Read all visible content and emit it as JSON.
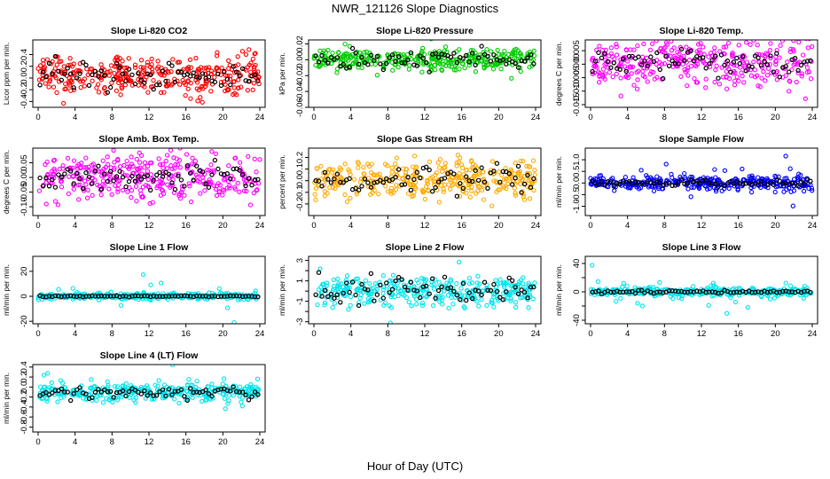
{
  "title": "NWR_121126  Slope Diagnostics",
  "xlabel": "Hour of Day (UTC)",
  "chart_data": [
    {
      "type": "scatter",
      "title": "Slope Li-820 CO2",
      "ylabel": "Licor ppm per min.",
      "color": "#ff0000",
      "xlim": [
        0,
        24
      ],
      "xticks": [
        0,
        4,
        8,
        12,
        16,
        20,
        24
      ],
      "ylim": [
        -0.5,
        0.65
      ],
      "yticks": [
        -0.4,
        -0.2,
        0.0,
        0.2,
        0.4
      ],
      "ytick_labels": [
        "-0.4",
        "-0.2",
        "0.0",
        "0.2",
        "0.4"
      ],
      "spread": 0.17,
      "outlier_spread": 0.3,
      "black_spread": 0.1,
      "black_center": 0.05
    },
    {
      "type": "scatter",
      "title": "Slope Li-820 Pressure",
      "ylabel": "kPa per min.",
      "color": "#00cc00",
      "xlim": [
        0,
        24
      ],
      "xticks": [
        0,
        4,
        8,
        12,
        16,
        20,
        24
      ],
      "ylim": [
        -0.06,
        0.025
      ],
      "yticks": [
        -0.06,
        -0.04,
        -0.02,
        0.0,
        0.02
      ],
      "ytick_labels": [
        "-0.06",
        "-0.04",
        "-0.02",
        "0.00",
        "0.02"
      ],
      "spread": 0.007,
      "outlier_spread": 0.025,
      "black_spread": 0.006,
      "black_center": 0.0
    },
    {
      "type": "scatter",
      "title": "Slope Li-820 Temp.",
      "ylabel": "degrees C per min.",
      "color": "#ff00ff",
      "xlim": [
        0,
        24
      ],
      "xticks": [
        0,
        4,
        8,
        12,
        16,
        20,
        24
      ],
      "ylim": [
        -0.016,
        0.009
      ],
      "yticks": [
        -0.015,
        -0.01,
        -0.005,
        0.0,
        0.005
      ],
      "ytick_labels": [
        "-0.015",
        "-0.010",
        "-0.005",
        "0.000",
        "0.005"
      ],
      "spread": 0.0045,
      "outlier_spread": 0.007,
      "black_spread": 0.0025,
      "black_center": 0.0005
    },
    {
      "type": "scatter",
      "title": "Slope Amb. Box Temp.",
      "ylabel": "degrees C per min.",
      "color": "#ff00ff",
      "xlim": [
        0,
        24
      ],
      "xticks": [
        0,
        4,
        8,
        12,
        16,
        20,
        24
      ],
      "ylim": [
        -0.13,
        0.1
      ],
      "yticks": [
        -0.1,
        -0.05,
        0.0,
        0.05
      ],
      "ytick_labels": [
        "-0.10",
        "-0.05",
        "0.00",
        "0.05"
      ],
      "spread": 0.04,
      "outlier_spread": 0.06,
      "black_spread": 0.025,
      "black_center": 0.0
    },
    {
      "type": "scatter",
      "title": "Slope Gas Stream RH",
      "ylabel": "percent per min.",
      "color": "#ffaa00",
      "xlim": [
        0,
        24
      ],
      "xticks": [
        0,
        4,
        8,
        12,
        16,
        20,
        24
      ],
      "ylim": [
        -0.3,
        0.28
      ],
      "yticks": [
        -0.2,
        -0.1,
        0.0,
        0.1,
        0.2
      ],
      "ytick_labels": [
        "-0.2",
        "-0.1",
        "0.0",
        "0.1",
        "0.2"
      ],
      "spread": 0.08,
      "outlier_spread": 0.12,
      "black_spread": 0.06,
      "black_center": 0.02
    },
    {
      "type": "scatter",
      "title": "Slope Sample Flow",
      "ylabel": "ml/min per min.",
      "color": "#0000ff",
      "xlim": [
        0,
        24
      ],
      "xticks": [
        0,
        4,
        8,
        12,
        16,
        20,
        24
      ],
      "ylim": [
        -1.4,
        1.5
      ],
      "yticks": [
        -1.0,
        -0.5,
        0.0,
        0.5,
        1.0
      ],
      "ytick_labels": [
        "-1.0",
        "-0.5",
        "0.0",
        "0.5",
        "1.0"
      ],
      "spread": 0.14,
      "outlier_spread": 0.6,
      "black_spread": 0.06,
      "black_center": 0.0
    },
    {
      "type": "scatter",
      "title": "Slope Line 1 Flow",
      "ylabel": "ml/min per min.",
      "color": "#00e5ee",
      "xlim": [
        0,
        24
      ],
      "xticks": [
        0,
        4,
        8,
        12,
        16,
        20,
        24
      ],
      "ylim": [
        -22,
        32
      ],
      "yticks": [
        -20,
        0,
        20
      ],
      "ytick_labels": [
        "-20",
        "0",
        "20"
      ],
      "spread": 1.2,
      "outlier_spread": 12,
      "black_spread": 0.3,
      "black_center": 0.0
    },
    {
      "type": "scatter",
      "title": "Slope Line 2 Flow",
      "ylabel": "ml/min per min.",
      "color": "#00e5ee",
      "xlim": [
        0,
        24
      ],
      "xticks": [
        0,
        4,
        8,
        12,
        16,
        20,
        24
      ],
      "ylim": [
        -3.2,
        3.4
      ],
      "yticks": [
        -3,
        -2,
        -1,
        0,
        1,
        2,
        3
      ],
      "ytick_labels": [
        "-3",
        "",
        "-1",
        "",
        "1",
        "",
        "3"
      ],
      "spread": 0.7,
      "outlier_spread": 1.4,
      "black_spread": 0.7,
      "black_center": 0.0
    },
    {
      "type": "scatter",
      "title": "Slope Line 3 Flow",
      "ylabel": "ml/min per min.",
      "color": "#00e5ee",
      "xlim": [
        0,
        24
      ],
      "xticks": [
        0,
        4,
        8,
        12,
        16,
        20,
        24
      ],
      "ylim": [
        -45,
        50
      ],
      "yticks": [
        -40,
        -20,
        0,
        20,
        40
      ],
      "ytick_labels": [
        "-40",
        "",
        "0",
        "",
        "40"
      ],
      "spread": 3,
      "outlier_spread": 20,
      "black_spread": 1,
      "black_center": 0.0
    },
    {
      "type": "scatter",
      "title": "Slope Line 4 (LT) Flow",
      "ylabel": "ml/min per min.",
      "color": "#00e5ee",
      "xlim": [
        0,
        24
      ],
      "xticks": [
        0,
        4,
        8,
        12,
        16,
        20,
        24
      ],
      "ylim": [
        -0.9,
        0.45
      ],
      "yticks": [
        -0.8,
        -0.6,
        -0.4,
        -0.2,
        0.0,
        0.2,
        0.4
      ],
      "ytick_labels": [
        "-0.8",
        "-0.6",
        "-0.4",
        "-0.2",
        "0.0",
        "0.2",
        "0.4"
      ],
      "spread": 0.09,
      "outlier_spread": 0.25,
      "black_spread": 0.06,
      "black_center": -0.1
    }
  ]
}
